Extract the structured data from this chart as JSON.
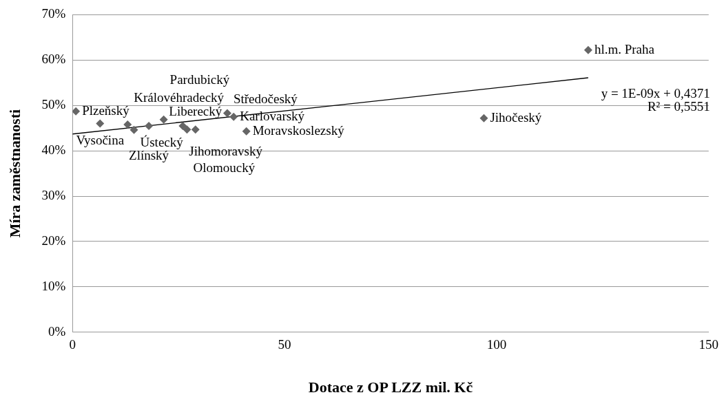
{
  "chart_data": {
    "type": "scatter",
    "xlabel": "Dotace z OP LZZ mil. Kč",
    "ylabel": "Míra zaměstnanosti",
    "x": [
      0.8,
      6.5,
      13,
      14.5,
      18,
      21.5,
      26,
      27,
      29,
      36.5,
      38,
      41,
      97,
      121.6
    ],
    "series": [
      {
        "color": "#666666",
        "values": [
          48.7,
          46.0,
          45.8,
          44.6,
          45.5,
          46.9,
          45.5,
          44.7,
          44.7,
          48.3,
          47.5,
          44.3,
          47.2,
          62.2
        ]
      },
      {
        "type": "line",
        "x": [
          0,
          121.6
        ],
        "color": "#000000",
        "values": [
          43.7,
          56.1
        ],
        "marker": "none"
      }
    ],
    "marker": "diamond",
    "xlim": [
      0,
      150
    ],
    "xticks": [
      0,
      50,
      100,
      150
    ],
    "ylim": [
      0,
      70
    ],
    "yticks": [
      {
        "value": 0,
        "label": "0%"
      },
      {
        "value": 10,
        "label": "10%"
      },
      {
        "value": 20,
        "label": "20%"
      },
      {
        "value": 30,
        "label": "30%"
      },
      {
        "value": 40,
        "label": "40%"
      },
      {
        "value": 50,
        "label": "50%"
      },
      {
        "value": 60,
        "label": "60%"
      },
      {
        "value": 70,
        "label": "70%"
      }
    ],
    "grid": "y",
    "legend": false,
    "annotations": [
      {
        "text": "Plzeňský",
        "x": 0.8,
        "y": 48.7
      },
      {
        "text": "Vysočina",
        "x": 6.5,
        "y": 46.0
      },
      {
        "text": "Královéhradecký",
        "x": 13,
        "y": 45.8
      },
      {
        "text": "Ústecký",
        "x": 14.5,
        "y": 44.6
      },
      {
        "text": "Zlínský",
        "x": 18,
        "y": 45.5
      },
      {
        "text": "Pardubický",
        "x": 21.5,
        "y": 46.9
      },
      {
        "text": "Jihomoravský",
        "x": 26,
        "y": 45.5
      },
      {
        "text": "Olomoucký",
        "x": 27,
        "y": 44.7
      },
      {
        "text": "Liberecký",
        "x": 29,
        "y": 44.7
      },
      {
        "text": "Středočeský",
        "x": 36.5,
        "y": 48.3
      },
      {
        "text": "Karlovarský",
        "x": 38,
        "y": 47.5
      },
      {
        "text": "Moravskoslezský",
        "x": 41,
        "y": 44.3
      },
      {
        "text": "Jihočeský",
        "x": 97,
        "y": 47.2
      },
      {
        "text": "hl.m. Praha",
        "x": 121.6,
        "y": 62.2
      },
      "y = 1E-09x + 0,4371",
      "R² = 0,5551"
    ]
  }
}
